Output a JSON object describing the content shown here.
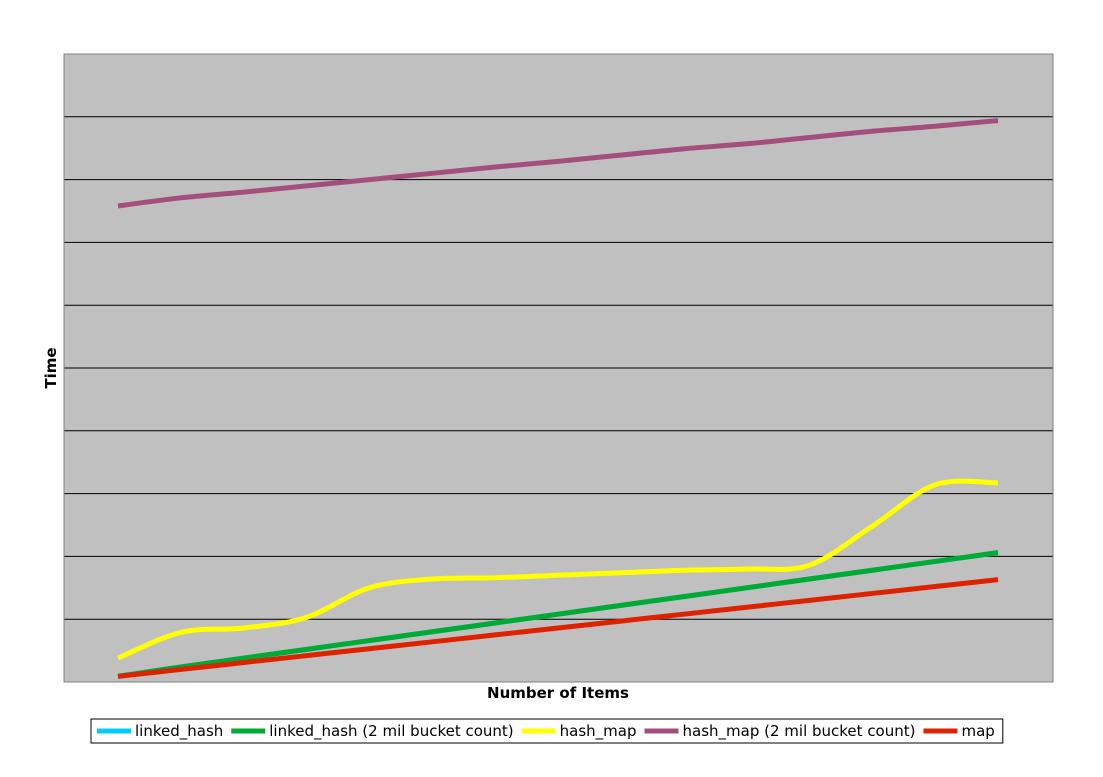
{
  "chart_data": {
    "type": "line",
    "title": "",
    "xlabel": "Number of Items",
    "ylabel": "Time",
    "x": [
      1,
      2,
      3,
      4,
      5,
      6,
      7,
      8,
      9,
      10,
      11,
      12,
      13,
      14,
      15
    ],
    "xlim": [
      1,
      15
    ],
    "ylim": [
      0,
      10
    ],
    "grid": true,
    "legend_position": "bottom",
    "series": [
      {
        "name": "linked_hash",
        "color": "#00ccff",
        "values": [
          0.09,
          0.24,
          0.38,
          0.52,
          0.66,
          0.8,
          0.94,
          1.08,
          1.22,
          1.36,
          1.5,
          1.64,
          1.78,
          1.92,
          2.06
        ]
      },
      {
        "name": "linked_hash (2 mil bucket count)",
        "color": "#00aa33",
        "values": [
          0.09,
          0.24,
          0.38,
          0.52,
          0.66,
          0.8,
          0.94,
          1.08,
          1.22,
          1.36,
          1.5,
          1.64,
          1.78,
          1.92,
          2.06
        ]
      },
      {
        "name": "hash_map",
        "color": "#ffff00",
        "values": [
          0.38,
          0.79,
          0.86,
          1.03,
          1.5,
          1.64,
          1.66,
          1.7,
          1.74,
          1.78,
          1.8,
          1.86,
          2.48,
          3.14,
          3.17
        ]
      },
      {
        "name": "hash_map (2 mil bucket count)",
        "color": "#a34e7d",
        "values": [
          7.58,
          7.71,
          7.8,
          7.9,
          8.0,
          8.1,
          8.2,
          8.29,
          8.39,
          8.49,
          8.57,
          8.67,
          8.77,
          8.85,
          8.94
        ]
      },
      {
        "name": "map",
        "color": "#dd2200",
        "values": [
          0.09,
          0.2,
          0.31,
          0.42,
          0.53,
          0.64,
          0.75,
          0.86,
          0.97,
          1.08,
          1.19,
          1.3,
          1.41,
          1.52,
          1.63
        ]
      }
    ]
  }
}
